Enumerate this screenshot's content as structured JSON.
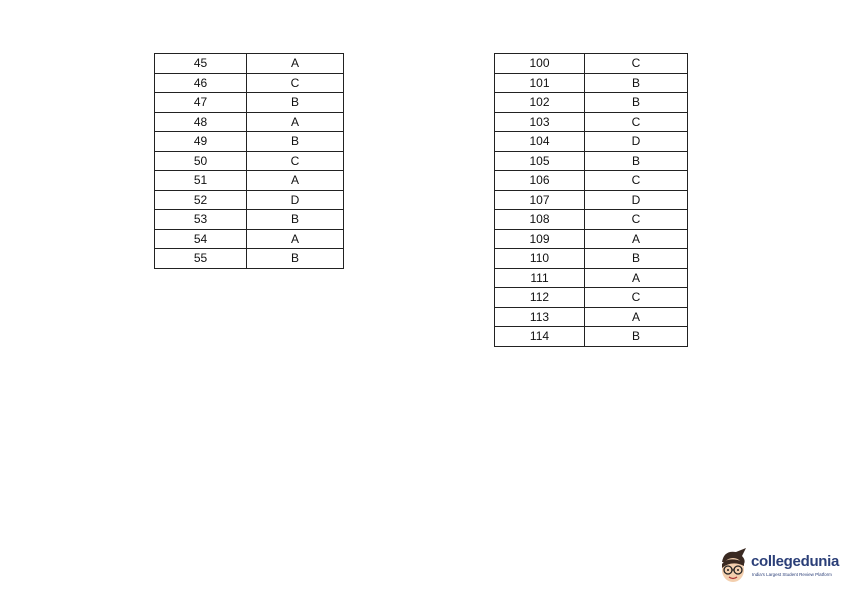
{
  "tables": [
    {
      "rows": [
        [
          "45",
          "A"
        ],
        [
          "46",
          "C"
        ],
        [
          "47",
          "B"
        ],
        [
          "48",
          "A"
        ],
        [
          "49",
          "B"
        ],
        [
          "50",
          "C"
        ],
        [
          "51",
          "A"
        ],
        [
          "52",
          "D"
        ],
        [
          "53",
          "B"
        ],
        [
          "54",
          "A"
        ],
        [
          "55",
          "B"
        ]
      ]
    },
    {
      "rows": [
        [
          "100",
          "C"
        ],
        [
          "101",
          "B"
        ],
        [
          "102",
          "B"
        ],
        [
          "103",
          "C"
        ],
        [
          "104",
          "D"
        ],
        [
          "105",
          "B"
        ],
        [
          "106",
          "C"
        ],
        [
          "107",
          "D"
        ],
        [
          "108",
          "C"
        ],
        [
          "109",
          "A"
        ],
        [
          "110",
          "B"
        ],
        [
          "111",
          "A"
        ],
        [
          "112",
          "C"
        ],
        [
          "113",
          "A"
        ],
        [
          "114",
          "B"
        ]
      ]
    }
  ],
  "logo": {
    "name": "collegedunia",
    "tagline": "India's Largest Student Review Platform",
    "color": "#2b3f78"
  }
}
